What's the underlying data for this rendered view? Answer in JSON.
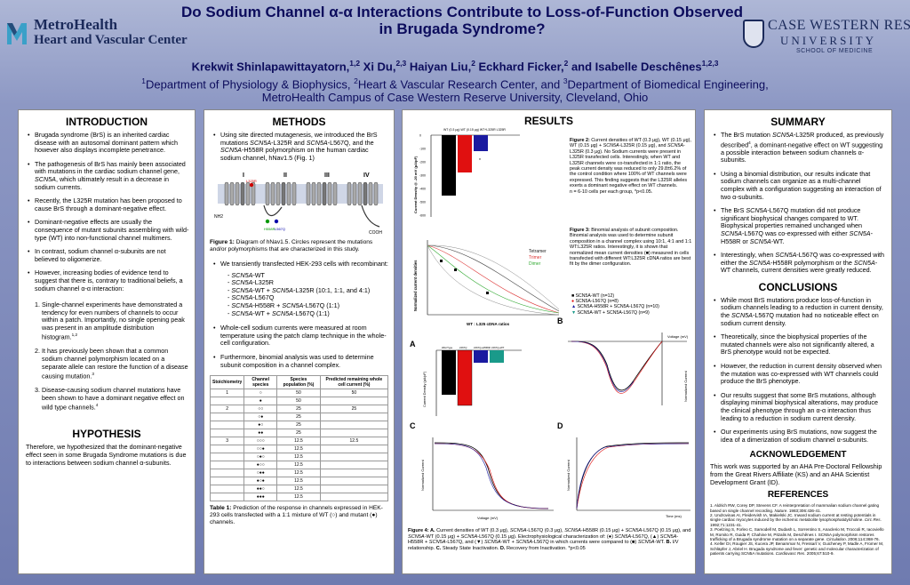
{
  "header": {
    "title": "Do Sodium Channel α-α Interactions Contribute to Loss-of-Function Observed in Brugada Syndrome?",
    "authors_html": "Krekwit Shinlapawittayatorn,<sup>1,2</sup> Xi Du,<sup>2,3</sup> Haiyan Liu,<sup>2</sup> Eckhard Ficker,<sup>2</sup> and Isabelle Deschênes<sup>1,2,3</sup>",
    "affiliations_html": "<sup>1</sup>Department of Physiology &amp; Biophysics, <sup>2</sup>Heart &amp; Vascular Research Center, and <sup>3</sup>Department of Biomedical Engineering,<br>MetroHealth Campus of Case Western Reserve University, Cleveland, Ohio",
    "logo_left_line1": "MetroHealth",
    "logo_left_line2": "Heart and Vascular Center",
    "logo_right_line1": "CASE WESTERN RESERVE",
    "logo_right_line2": "UNIVERSITY",
    "logo_right_line3": "SCHOOL OF MEDICINE"
  },
  "introduction": {
    "title": "INTRODUCTION",
    "bullets": [
      "Brugada syndrome (BrS) is an inherited cardiac disease with an autosomal dominant pattern which however also displays incomplete penetrance.",
      "The pathogenesis of BrS has mainly been associated with mutations in the cardiac sodium channel gene, <i>SCN5A</i>, which ultimately result in a decrease in sodium currents.",
      "Recently, the L325R mutation has been proposed to cause BrS through a dominant-negative effect.",
      "Dominant-negative effects are usually the consequence of mutant subunits assembling with wild-type (WT) into non-functional channel multimers.",
      "In contrast, sodium channel α-subunits are not believed to oligomerize.",
      "However, increasing bodies of evidence tend to suggest that there is, contrary to traditional beliefs, a sodium channel α-α interaction:"
    ],
    "numbered": [
      "Single-channel experiments have demonstrated a tendency for even numbers of channels to occur within a patch. Importantly, no single opening peak was present in an amplitude distribution histogram.<sup>1,2</sup>",
      "It has previously been shown that a common sodium channel polymorphism located on a separate allele can restore the function of a disease causing mutation.<sup>3</sup>",
      "Disease-causing sodium channel mutations have been shown to have a dominant negative effect on wild type channels.<sup>4</sup>"
    ]
  },
  "hypothesis": {
    "title": "HYPOTHESIS",
    "text": "Therefore, we hypothesized that the dominant-negative effect seen in some Brugada Syndrome mutations is due to interactions between sodium channel α-subunits."
  },
  "methods": {
    "title": "METHODS",
    "bullet1": "Using site directed mutagenesis, we introduced the BrS mutations <i>SCN5A</i>-L325R and <i>SCN5A</i>-L567Q, and the <i>SCN5A</i>-H558R polymorphism on the human cardiac sodium channel, hNav1.5 (Fig. 1)",
    "fig1_caption": "<b>Figure 1:</b> Diagram of hNav1.5. Circles represent the mutations and/or polymorphisms that are characterized in this study.",
    "fig1_domains": [
      "I",
      "II",
      "III",
      "IV"
    ],
    "fig1_labels": [
      "NH2",
      "COOH",
      "L325R",
      "H558R",
      "L567Q"
    ],
    "bullet2": "We transiently transfected HEK-293 cells with recombinant:",
    "transfections": [
      "- <i>SCN5A</i>-WT",
      "- <i>SCN5A</i>-L325R",
      "- <i>SCN5A</i>-WT + <i>SCN5A</i>-L325R (10:1, 1:1, and 4:1)",
      "- <i>SCN5A</i>-L567Q",
      "- <i>SCN5A</i>-H558R + <i>SCN5A</i>-L567Q (1:1)",
      "- <i>SCN5A</i>-WT + <i>SCN5A</i>-L567Q (1:1)"
    ],
    "bullet3": "Whole-cell sodium currents were measured at room temperature using the patch clamp technique in the whole-cell configuration.",
    "bullet4": "Furthermore, binomial analysis was used to determine subunit composition in a channel complex.",
    "table_headers": [
      "Stoichiometry",
      "Channel species",
      "Species population (%)",
      "Predicted remaining whole cell current (%)"
    ],
    "table_rows": [
      [
        "1",
        "○",
        "50",
        "50"
      ],
      [
        "",
        "●",
        "50",
        ""
      ],
      [
        "2",
        "○○",
        "25",
        "25"
      ],
      [
        "",
        "○●",
        "25",
        ""
      ],
      [
        "",
        "●○",
        "25",
        ""
      ],
      [
        "",
        "●●",
        "25",
        ""
      ],
      [
        "3",
        "○○○",
        "12.5",
        "12.5"
      ],
      [
        "",
        "○○●",
        "12.5",
        ""
      ],
      [
        "",
        "○●○",
        "12.5",
        ""
      ],
      [
        "",
        "●○○",
        "12.5",
        ""
      ],
      [
        "",
        "○●●",
        "12.5",
        ""
      ],
      [
        "",
        "●○●",
        "12.5",
        ""
      ],
      [
        "",
        "●●○",
        "12.5",
        ""
      ],
      [
        "",
        "●●●",
        "12.5",
        ""
      ]
    ],
    "table_caption": "<b>Table 1:</b> Prediction of the response in channels expressed in HEK-293 cells transfected with a 1:1 mixture of WT (○) and mutant (●) channels."
  },
  "results": {
    "title": "RESULTS",
    "fig2_caption": "<b>Figure 2:</b> Current densities of WT (0.3 μg), WT (0.15 μg), WT (0.15 μg) + <i>SCN5A</i>-L325R (0.15 μg), and <i>SCN5A</i>-L325R (0.3 μg). No Sodium currents were present in L325R transfected cells. Interestingly, when WT and L325R channels were co-transfected in 1:1 ratio, the peak current density was reduced to only 29.8±6.2% of the control condition where 100% of WT channels were expressed. This finding suggests that the L325R alleles exerts a dominant negative effect on WT channels.<br>n = 6-10 cells per each group, *p&lt;0.05.",
    "fig3_caption": "<b>Figure 3:</b> Binomial analysis of subunit composition. Binomial analysis was used to determine subunit composition in a channel complex using 10:1, 4:1 and 1:1 WT:L325R ratios. Interestingly, it is shown that normalized mean current densities (■) measured in cells transfected with different WT:L325R cDNA ratios are best fit by the dimer configuration.",
    "fig4_caption": "<b>Figure 4: A.</b> Current densities of WT (0.3 μg), <i>SCN5A</i>-L567Q (0.3 μg), <i>SCN5A</i>-H558R (0.15 μg) + <i>SCN5A</i>-L567Q (0.15 μg), and <i>SCN5A</i>-WT (0.15 μg) + <i>SCN5A</i>-L567Q (0.15 μg). Electrophysiological characterization of: (●) <i>SCN5A</i>-L567Q, (▲) <i>SCN5A</i>-H558R + <i>SCN5A</i>-L567Q, and (▼) <i>SCN5A</i>-WT + <i>SCN5A</i>-L567Q in which currents were compared to (■) <i>SCN5A</i>-WT. <b>B.</b> I/V relationship. <b>C.</b> Steady State Inactivation. <b>D.</b> Recovery from Inactivation. *p&lt;0.05",
    "fig2_legend": "WT (0.3 μg)  WT (0.15 μg)  WT+L325R  L325R",
    "fig2_ylabel": "Current Density @ -20 mV (pA/pF)",
    "fig3_ylabel": "Normalized current densities",
    "fig3_xlabel": "WT : L325 cDNA ratios",
    "fig3_series": [
      "Tetramer",
      "Trimer",
      "Dimer"
    ],
    "fig4_legend": [
      "SCN5A-WT (n=12)",
      "SCN5A-L567Q (n=8)",
      "SCN5A-H558R + SCN5A-L567Q (n=10)",
      "SCN5A-WT + SCN5A-L567Q (n=9)"
    ],
    "fig4_ylabel_a": "Current Density (pA/pF)",
    "fig4_labels_a": [
      "Wild Type",
      "L567Q",
      "L567Q+H558R",
      "L567Q+WT"
    ],
    "fig4_ylabel_b": "Normalized Current",
    "fig4_xlabel_b": "Voltage (mV)",
    "fig4_ylabel_c": "Normalized Current",
    "fig4_xlabel_c": "Voltage (mV)",
    "fig4_ylabel_d": "Normalized Current",
    "fig4_xlabel_d": "Time (ms)",
    "panel_letters": [
      "A",
      "B",
      "C",
      "D"
    ]
  },
  "summary": {
    "title": "SUMMARY",
    "bullets": [
      "The BrS mutation <i>SCN5A</i>-L325R produced, as previously described<sup>4</sup>, a dominant-negative effect on WT suggesting a possible interaction between sodium channels α-subunits.",
      "Using a binomial distribution, our results indicate that sodium channels can organize as a multi-channel complex with a configuration suggesting an interaction of two α-subunits.",
      "The BrS <i>SCN5A</i>-L567Q mutation did not produce significant biophysical changes compared to WT. Biophysical properties remained unchanged when <i>SCN5A</i>-L567Q was co-expressed with either <i>SCN5A</i>-H558R or <i>SCN5A</i>-WT.",
      "Interestingly, when <i>SCN5A</i>-L567Q was co-expressed with either the <i>SCN5A</i>-H558R polymorphism or the <i>SCN5A</i>-WT channels, current densities were greatly reduced."
    ]
  },
  "conclusions": {
    "title": "CONCLUSIONS",
    "bullets": [
      "While most BrS mutations produce loss-of-function in sodium channels leading to a reduction in current density, the <i>SCN5A</i>-L567Q mutation had no noticeable effect on sodium current density.",
      "Theoretically, since the biophysical properties of the mutated channels were also not significantly altered, a BrS phenotype would not be expected.",
      "However, the reduction in current density observed when the mutation was co-expressed with WT channels could produce the BrS phenotype.",
      "Our results suggest that some BrS mutations, although displaying minimal biophysical alterations, may produce the clinical phenotype through an α-α interaction thus leading to a reduction in sodium current density.",
      "Our experiments using BrS mutations, now suggest the idea of a dimerization of sodium channel α-subunits."
    ]
  },
  "acknowledgement": {
    "title": "ACKNOWLEDGEMENT",
    "text": "This work was supported by an AHA Pre-Doctoral Fellowship from the Great Rivers Affiliate (KS) and an AHA Scientist Development Grant (ID)."
  },
  "references": {
    "title": "REFERENCES",
    "text": "1. Aldrich RW, Corey DP, Stevens CF. A reinterpretation of mammalian sodium channel gating based on single channel recording. <i>Nature</i>. 1983;306:436-41.<br>2. Undrovinas AI, Fleidervish IA, Makielski JC. Inward sodium current at resting potentials in single cardiac myocytes induced by the ischemic metabolite lysophosphatidylcholine. <i>Circ Res</i>. 1992;71:1231-41.<br>3. Poelzing S, Forleo C, Samodell M, Dudash L, Sorrentino S, Anaclerio M, Troccoli R, Iacoviello M, Romito R, Guida P, Chahine M, Pitzalis M, Deschênes I. SCN5A polymorphism restores trafficking of a Brugada syndrome mutation on a separate gene. <i>Circulation</i>. 2006;114:368-76.<br>4. Keller DI, Rougier JS, Kucera JP, Benammar N, Fressart V, Guicheney P, Madle A, Fromer M, Schläpfer J, Abriel H. Brugada syndrome and fever: genetic and molecular characterization of patients carrying SCN5A mutations. <i>Cardiovasc Res</i>. 2005;67:510-9."
  },
  "colors": {
    "title": "#0c0c5c",
    "bar_black": "#000000",
    "bar_red": "#e01010",
    "bar_blue": "#1a1aa0",
    "bar_teal": "#1a9a8a"
  }
}
